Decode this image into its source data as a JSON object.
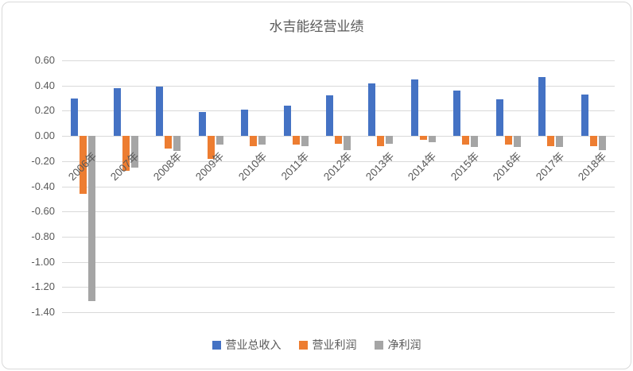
{
  "chart_data": {
    "type": "bar",
    "title": "水吉能经营业绩",
    "categories": [
      "2006年",
      "2007年",
      "2008年",
      "2009年",
      "2010年",
      "2011年",
      "2012年",
      "2013年",
      "2014年",
      "2015年",
      "2016年",
      "2017年",
      "2018年"
    ],
    "series": [
      {
        "name": "营业总收入",
        "color": "#4472c4",
        "values": [
          0.3,
          0.38,
          0.39,
          0.19,
          0.21,
          0.24,
          0.32,
          0.42,
          0.45,
          0.36,
          0.29,
          0.47,
          0.33
        ]
      },
      {
        "name": "营业利润",
        "color": "#ed7d31",
        "values": [
          -0.46,
          -0.28,
          -0.1,
          -0.18,
          -0.08,
          -0.07,
          -0.06,
          -0.08,
          -0.03,
          -0.07,
          -0.07,
          -0.08,
          -0.08
        ]
      },
      {
        "name": "净利润",
        "color": "#a5a5a5",
        "values": [
          -1.31,
          -0.25,
          -0.12,
          -0.07,
          -0.07,
          -0.08,
          -0.11,
          -0.06,
          -0.05,
          -0.09,
          -0.09,
          -0.09,
          -0.11
        ]
      }
    ],
    "ylim": [
      -1.4,
      0.6
    ],
    "ytick_step": 0.2,
    "ytick_labels": [
      "0.60",
      "0.40",
      "0.20",
      "0.00",
      "-0.20",
      "-0.40",
      "-0.60",
      "-0.80",
      "-1.00",
      "-1.20",
      "-1.40"
    ],
    "grid": true,
    "legend_position": "bottom",
    "axis_text_color": "#595959",
    "gridline_color": "#d9d9d9"
  }
}
